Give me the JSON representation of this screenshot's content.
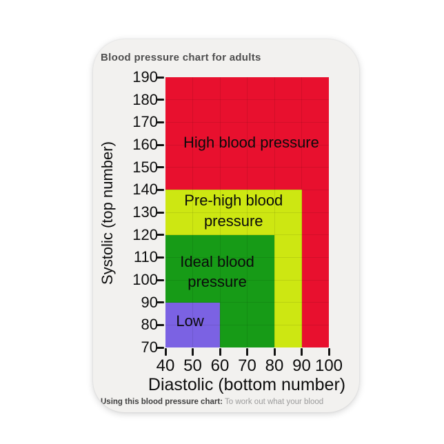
{
  "card": {
    "title": "Blood pressure chart for adults",
    "caption_bold": "Using this blood pressure chart:",
    "caption_rest": " To work out what your blood"
  },
  "colors": {
    "page_bg": "#ffffff",
    "card_bg": "#f2f1ef",
    "tick": "#141414",
    "title_text": "#4e4e4e",
    "caption_bold_text": "#3f3f3f",
    "caption_rest_text": "#9b9b9b",
    "high": "#e8102e",
    "pre_high": "#cde712",
    "ideal": "#179b17",
    "low": "#7b62e3"
  },
  "chart_data": {
    "type": "area",
    "title": "Blood pressure chart for adults",
    "xlabel": "Diastolic (bottom number)",
    "ylabel": "Systolic (top number)",
    "xlim": [
      40,
      100
    ],
    "ylim": [
      70,
      190
    ],
    "x_ticks": [
      40,
      50,
      60,
      70,
      80,
      90,
      100
    ],
    "y_ticks": [
      70,
      80,
      90,
      100,
      110,
      120,
      130,
      140,
      150,
      160,
      170,
      180,
      190
    ],
    "grid": true,
    "legend_position": "labels drawn inside regions",
    "regions": [
      {
        "name": "High blood pressure",
        "color": "#e8102e",
        "diastolic": [
          40,
          100
        ],
        "systolic": [
          70,
          190
        ],
        "draw_order_note": "base layer; visible where systolic 140-190 or diastolic 90-100",
        "label_lines": [
          "High blood pressure"
        ],
        "label_at": {
          "diastolic": 71.5,
          "systolic": 161
        }
      },
      {
        "name": "Pre-high blood pressure",
        "color": "#cde712",
        "diastolic": [
          40,
          90
        ],
        "systolic": [
          70,
          140
        ],
        "draw_order_note": "visible where systolic 120-140 or diastolic 80-90",
        "label_lines": [
          "Pre-high blood",
          "pressure"
        ],
        "label_at": {
          "diastolic": 65,
          "systolic": 130.5
        }
      },
      {
        "name": "Ideal blood pressure",
        "color": "#179b17",
        "diastolic": [
          40,
          80
        ],
        "systolic": [
          70,
          120
        ],
        "draw_order_note": "visible where systolic 90-120 or diastolic 60-80",
        "label_lines": [
          "Ideal blood",
          "pressure"
        ],
        "label_at": {
          "diastolic": 59,
          "systolic": 103.5
        }
      },
      {
        "name": "Low",
        "color": "#7b62e3",
        "diastolic": [
          40,
          60
        ],
        "systolic": [
          70,
          90
        ],
        "draw_order_note": "top layer",
        "label_lines": [
          "Low"
        ],
        "label_at": {
          "diastolic": 49,
          "systolic": 81.5
        }
      }
    ]
  }
}
